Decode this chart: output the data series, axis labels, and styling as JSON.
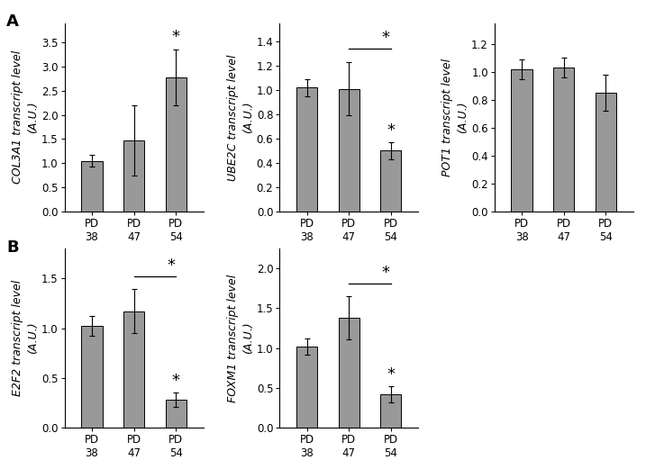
{
  "bar_color": "#999999",
  "bar_width": 0.5,
  "panel_A": {
    "COL3A1": {
      "values": [
        1.05,
        1.47,
        2.78
      ],
      "errors": [
        0.12,
        0.72,
        0.58
      ],
      "ylim": [
        0,
        3.9
      ],
      "yticks": [
        0.0,
        0.5,
        1.0,
        1.5,
        2.0,
        2.5,
        3.0,
        3.5
      ],
      "ylabel_gene": "COL3A1",
      "ylabel_unit": "transcript level\n(A.U.)",
      "bracket": null,
      "star_on_bar": 2
    },
    "UBE2C": {
      "values": [
        1.02,
        1.01,
        0.5
      ],
      "errors": [
        0.07,
        0.22,
        0.07
      ],
      "ylim": [
        0,
        1.55
      ],
      "yticks": [
        0.0,
        0.2,
        0.4,
        0.6,
        0.8,
        1.0,
        1.2,
        1.4
      ],
      "ylabel_gene": "UBE2C",
      "ylabel_unit": "transcript level\n(A.U.)",
      "bracket": [
        1,
        2
      ],
      "star_on_bar": 2
    },
    "POT1": {
      "values": [
        1.02,
        1.03,
        0.85
      ],
      "errors": [
        0.07,
        0.07,
        0.13
      ],
      "ylim": [
        0,
        1.35
      ],
      "yticks": [
        0.0,
        0.2,
        0.4,
        0.6,
        0.8,
        1.0,
        1.2
      ],
      "ylabel_gene": "POT1",
      "ylabel_unit": "transcript level\n(A.U.)",
      "bracket": null,
      "star_on_bar": null
    }
  },
  "panel_B": {
    "E2F2": {
      "values": [
        1.02,
        1.17,
        0.28
      ],
      "errors": [
        0.1,
        0.22,
        0.07
      ],
      "ylim": [
        0,
        1.8
      ],
      "yticks": [
        0.0,
        0.5,
        1.0,
        1.5
      ],
      "ylabel_gene": "E2F2",
      "ylabel_unit": "transcript level\n(A.U.)",
      "bracket": [
        1,
        2
      ],
      "star_on_bar": 2
    },
    "FOXM1": {
      "values": [
        1.02,
        1.38,
        0.42
      ],
      "errors": [
        0.1,
        0.27,
        0.1
      ],
      "ylim": [
        0,
        2.25
      ],
      "yticks": [
        0.0,
        0.5,
        1.0,
        1.5,
        2.0
      ],
      "ylabel_gene": "FOXM1",
      "ylabel_unit": "transcript level\n(A.U.)",
      "bracket": [
        1,
        2
      ],
      "star_on_bar": 2
    }
  },
  "categories": [
    "PD\n38",
    "PD\n47",
    "PD\n54"
  ],
  "label_fontsize": 9,
  "tick_fontsize": 8.5,
  "star_fontsize": 13,
  "panel_label_fontsize": 13
}
